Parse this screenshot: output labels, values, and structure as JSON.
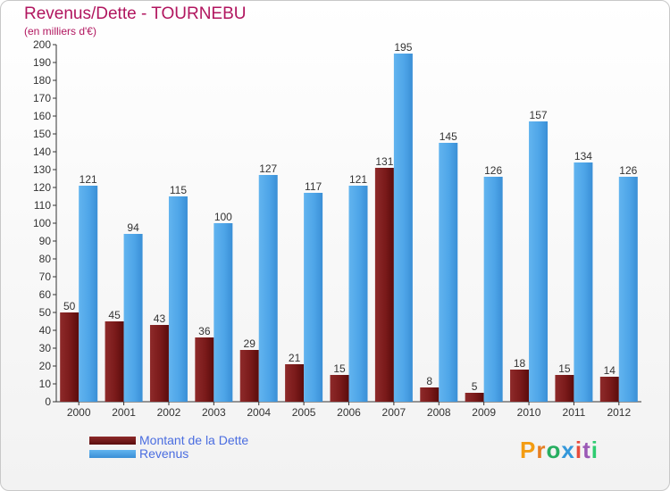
{
  "header": {
    "title": "Revenus/Dette - TOURNEBU",
    "subtitle": "(en milliers d'€)"
  },
  "legend": {
    "items": [
      {
        "label": "Montant de la Dette",
        "color": "#7a1a1a"
      },
      {
        "label": "Revenus",
        "color": "#4ea5e8"
      }
    ]
  },
  "brand": {
    "name": "Proxiti",
    "letters": [
      "P",
      "r",
      "o",
      "x",
      "i",
      "t",
      "i"
    ],
    "colors": [
      "#f39c12",
      "#e67e22",
      "#27ae60",
      "#3498db",
      "#e74c3c",
      "#9b59b6",
      "#2ecc71"
    ]
  },
  "chart_data": {
    "type": "bar",
    "title": "Revenus/Dette - TOURNEBU",
    "ylabel": "(en milliers d'€)",
    "xlabel": "",
    "categories": [
      "2000",
      "2001",
      "2002",
      "2003",
      "2004",
      "2005",
      "2006",
      "2007",
      "2008",
      "2009",
      "2010",
      "2011",
      "2012"
    ],
    "series": [
      {
        "name": "Montant de la Dette",
        "color": "#7a1a1a",
        "values": [
          50,
          45,
          43,
          36,
          29,
          21,
          15,
          131,
          8,
          5,
          18,
          15,
          14
        ]
      },
      {
        "name": "Revenus",
        "color": "#4ea5e8",
        "values": [
          121,
          94,
          115,
          100,
          127,
          117,
          121,
          195,
          145,
          126,
          157,
          134,
          126
        ]
      }
    ],
    "ylim": [
      0,
      200
    ],
    "yticks": [
      0,
      10,
      20,
      30,
      40,
      50,
      60,
      70,
      80,
      90,
      100,
      110,
      120,
      130,
      140,
      150,
      160,
      170,
      180,
      190,
      200
    ],
    "grid": false,
    "legend": "bottom-left"
  }
}
